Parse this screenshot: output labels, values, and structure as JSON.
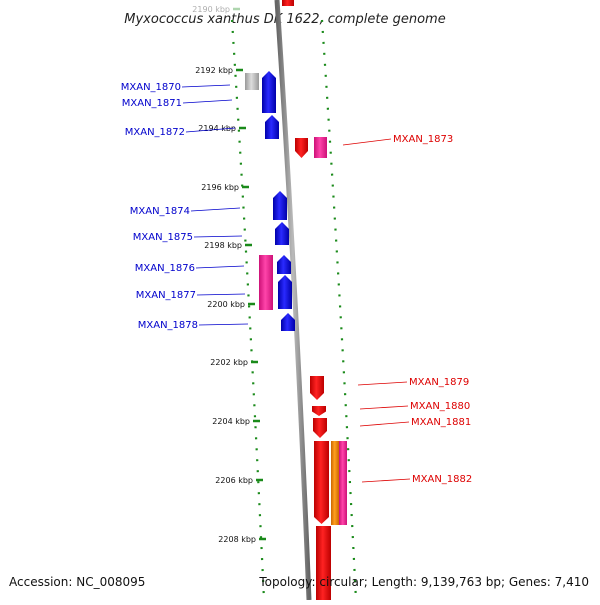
{
  "title": "Myxococcus xanthus DK 1622, complete genome",
  "footer": {
    "accession": "Accession: NC_008095",
    "summary": "Topology: circular; Length: 9,139,763 bp; Genes: 7,410"
  },
  "ticks": [
    {
      "label": "2190 kbp"
    },
    {
      "label": "2192 kbp"
    },
    {
      "label": "2194 kbp"
    },
    {
      "label": "2196 kbp"
    },
    {
      "label": "2198 kbp"
    },
    {
      "label": "2200 kbp"
    },
    {
      "label": "2202 kbp"
    },
    {
      "label": "2204 kbp"
    },
    {
      "label": "2206 kbp"
    },
    {
      "label": "2208 kbp"
    }
  ],
  "labels_left": [
    {
      "text": "MXAN_1870"
    },
    {
      "text": "MXAN_1871"
    },
    {
      "text": "MXAN_1872"
    },
    {
      "text": "MXAN_1874"
    },
    {
      "text": "MXAN_1875"
    },
    {
      "text": "MXAN_1876"
    },
    {
      "text": "MXAN_1877"
    },
    {
      "text": "MXAN_1878"
    }
  ],
  "labels_right": [
    {
      "text": "MXAN_1873"
    },
    {
      "text": "MXAN_1879"
    },
    {
      "text": "MXAN_1880"
    },
    {
      "text": "MXAN_1881"
    },
    {
      "text": "MXAN_1882"
    }
  ],
  "colors": {
    "forward_gene": "#0000ee",
    "reverse_gene": "#ee0000",
    "rna_gene": "#ff2a9a",
    "other_gene": "#ff8c00",
    "pseudo_gene": "#b8b8b8",
    "backbone": "#888888",
    "tick": "#1a8a1a"
  }
}
